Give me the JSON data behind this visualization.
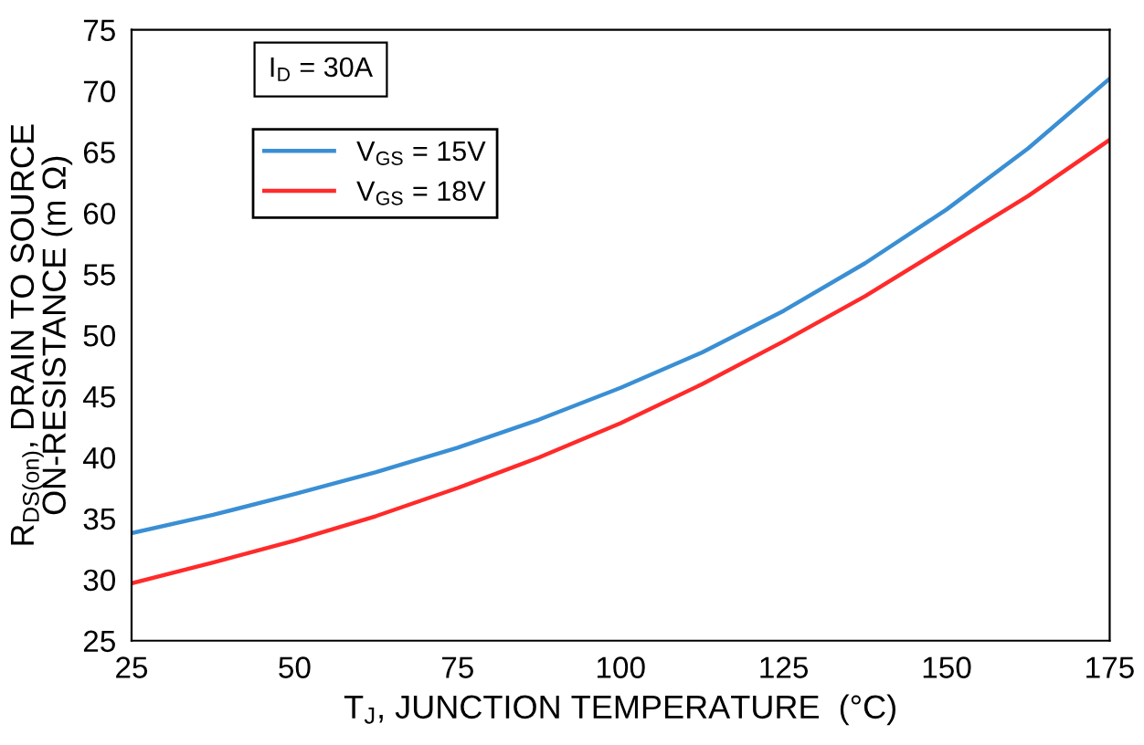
{
  "chart_data": {
    "type": "line",
    "xlabel": "T$_{J}$, JUNCTION TEMPERATURE  (°C)",
    "ylabel": "R$_{DS(on)}$, DRAIN TO SOURCE\nON-RESISTANCE (m Ω)",
    "annotations": [
      "I$_{D}$ = 30A"
    ],
    "x": [
      25,
      37.5,
      50,
      62.5,
      75,
      87.5,
      100,
      112.5,
      125,
      137.5,
      150,
      162.5,
      175
    ],
    "series": [
      {
        "name": "V$_{GS}$ = 15V",
        "color": "#3a8fd4",
        "values": [
          33.8,
          35.3,
          37.0,
          38.8,
          40.8,
          43.1,
          45.7,
          48.6,
          52.0,
          55.9,
          60.3,
          65.3,
          71.0
        ]
      },
      {
        "name": "V$_{GS}$ = 18V",
        "color": "#ff2a2a",
        "values": [
          29.7,
          31.4,
          33.2,
          35.2,
          37.5,
          40.0,
          42.8,
          46.0,
          49.5,
          53.2,
          57.3,
          61.4,
          66.0
        ]
      }
    ],
    "xlim": [
      25,
      175
    ],
    "xticks": [
      25,
      50,
      75,
      100,
      125,
      150,
      175
    ],
    "ylim": [
      25,
      75
    ],
    "yticks": [
      25,
      30,
      35,
      40,
      45,
      50,
      55,
      60,
      65,
      70,
      75
    ],
    "grid": false,
    "legend": "top left",
    "marker": "none",
    "line_style": "solid"
  }
}
